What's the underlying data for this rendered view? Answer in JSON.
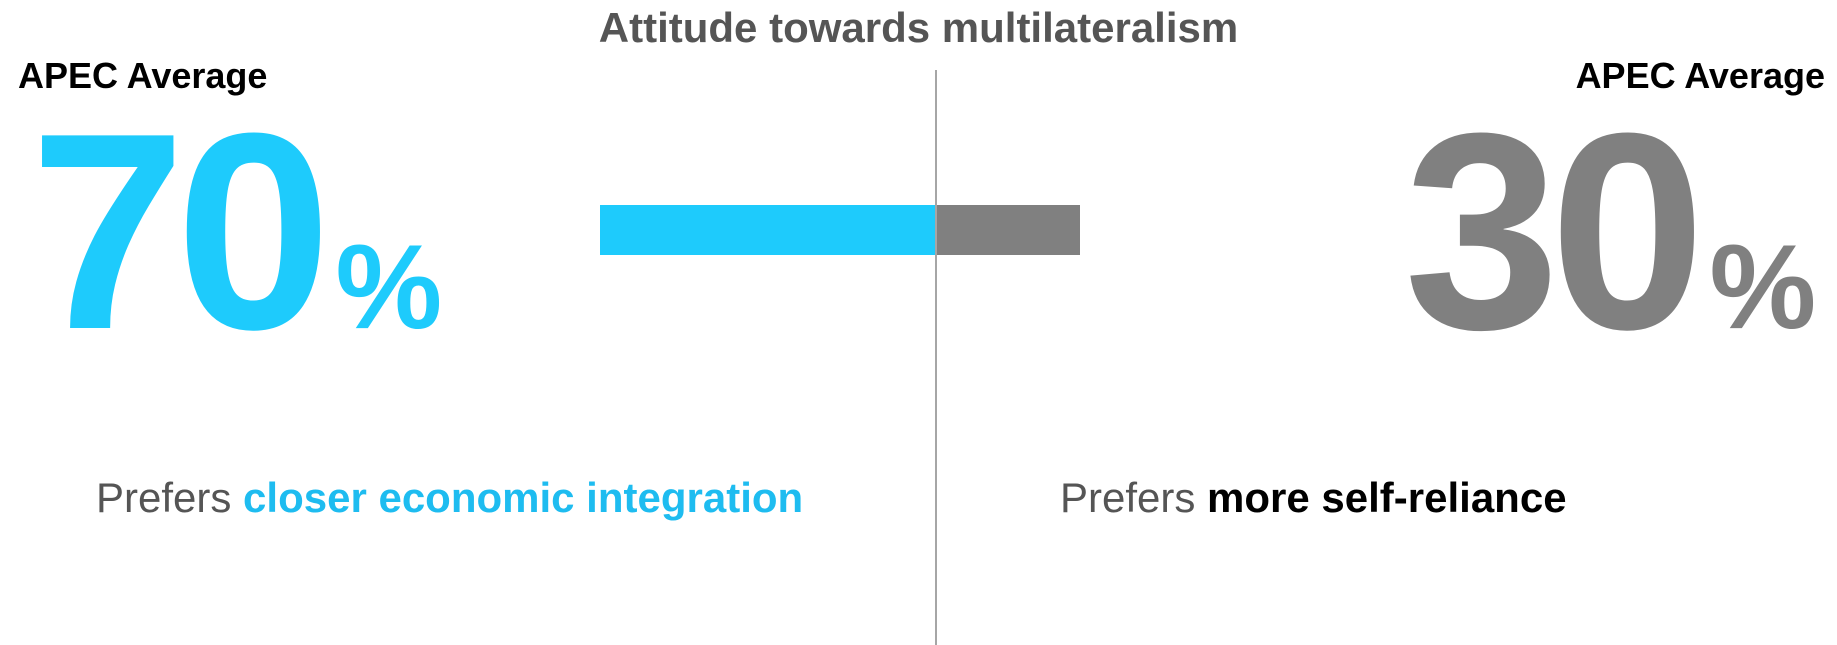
{
  "chart_data": {
    "type": "bar",
    "orientation": "horizontal-diverging",
    "title": "Attitude towards multilateralism",
    "series": [
      {
        "name": "Prefers closer economic integration",
        "value": 70,
        "color": "#1ecbfc"
      },
      {
        "name": "Prefers more self-reliance",
        "value": 30,
        "color": "#808080"
      }
    ],
    "unit": "%"
  },
  "labels": {
    "title": "Attitude towards multilateralism",
    "left_group": "APEC Average",
    "right_group": "APEC Average",
    "left_value": "70",
    "right_value": "30",
    "percent_sign": "%",
    "left_pref_lead": "Prefers ",
    "left_pref_emph": "closer economic integration",
    "right_pref_lead": "Prefers ",
    "right_pref_emph": "more self-reliance"
  }
}
